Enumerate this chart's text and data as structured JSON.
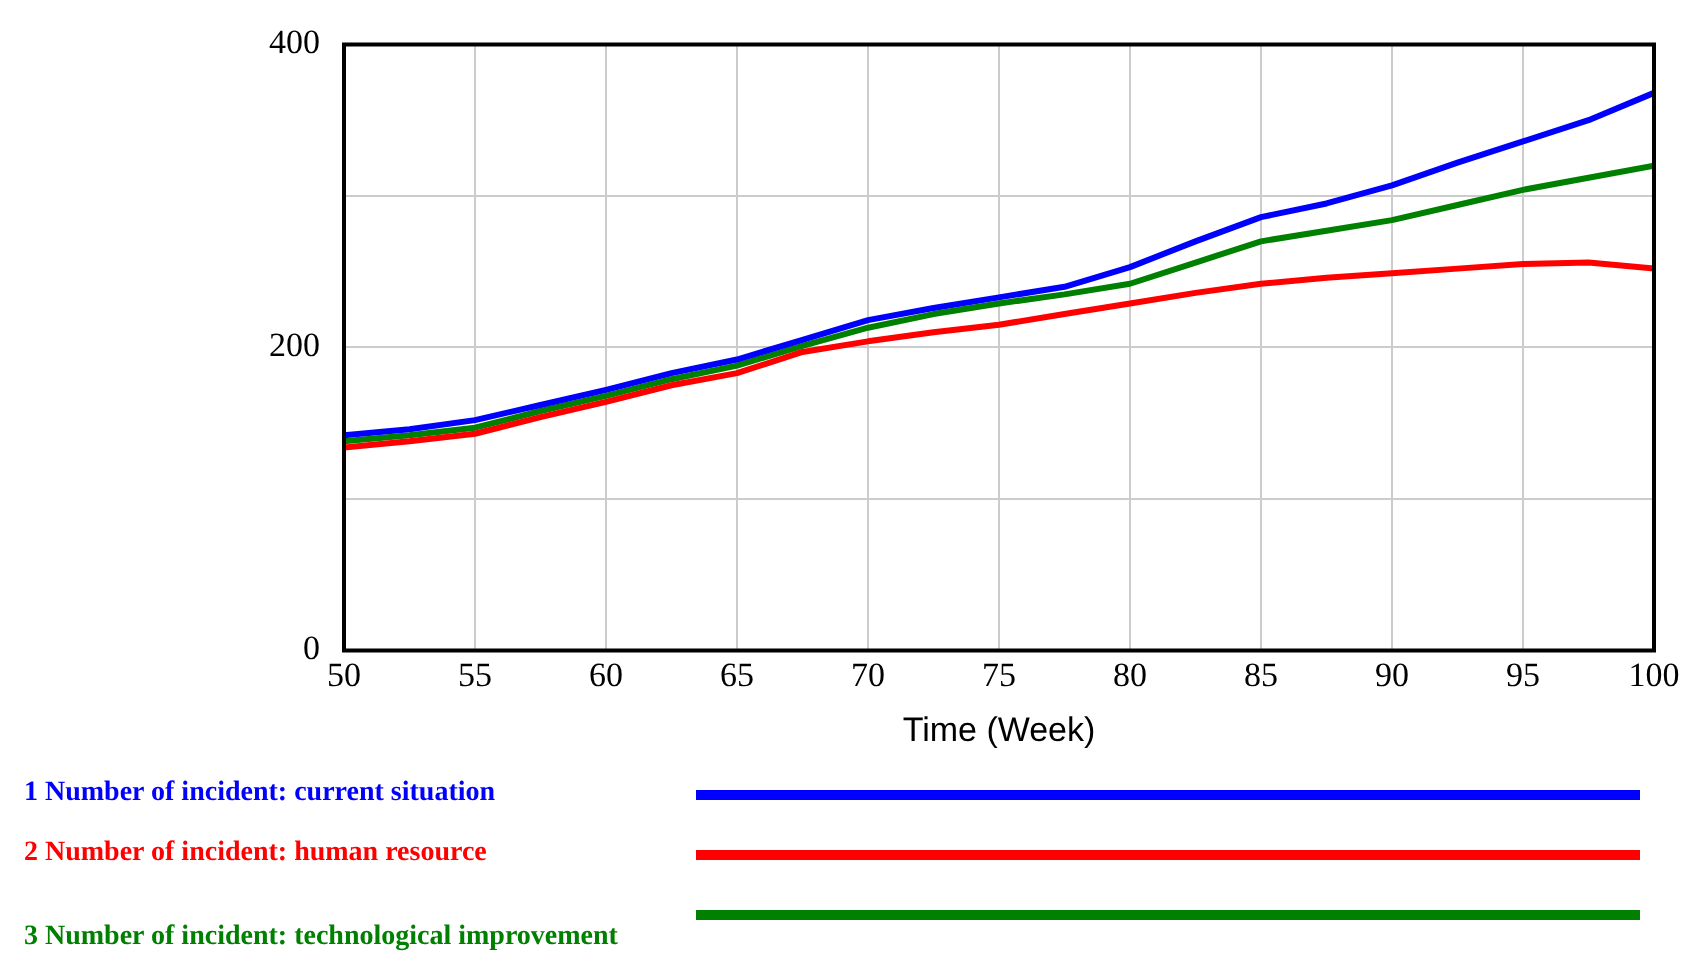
{
  "chart_data": {
    "type": "line",
    "xlabel": "Time (Week)",
    "x": [
      50,
      52.5,
      55,
      57.5,
      60,
      62.5,
      65,
      67.5,
      70,
      72.5,
      75,
      77.5,
      80,
      82.5,
      85,
      87.5,
      90,
      92.5,
      95,
      97.5,
      100
    ],
    "series": [
      {
        "name": "1 Number of incident: current situation",
        "color": "#0000ff",
        "values": [
          142,
          146,
          152,
          162,
          172,
          183,
          192,
          205,
          218,
          226,
          233,
          240,
          253,
          270,
          286,
          295,
          307,
          322,
          336,
          350,
          368
        ]
      },
      {
        "name": "2 Number of incident: human resource",
        "color": "#ff0000",
        "values": [
          134,
          138,
          143,
          154,
          164,
          175,
          183,
          197,
          204,
          210,
          215,
          222,
          229,
          236,
          242,
          246,
          249,
          252,
          255,
          256,
          252
        ]
      },
      {
        "name": "3 Number of incident: technological improvement",
        "color": "#008000",
        "values": [
          138,
          142,
          147,
          158,
          168,
          179,
          188,
          201,
          213,
          222,
          229,
          235,
          242,
          256,
          270,
          277,
          284,
          294,
          304,
          312,
          320
        ]
      }
    ],
    "xlim": [
      50,
      100
    ],
    "xticks": [
      50,
      55,
      60,
      65,
      70,
      75,
      80,
      85,
      90,
      95,
      100
    ],
    "ylim": [
      0,
      400
    ],
    "yticks": [
      0,
      {
        "value": 100,
        "label": null
      },
      200,
      {
        "value": 300,
        "label": null
      },
      400
    ],
    "grid": true,
    "legend": "bottom",
    "marker": "none",
    "line_style": "solid"
  }
}
